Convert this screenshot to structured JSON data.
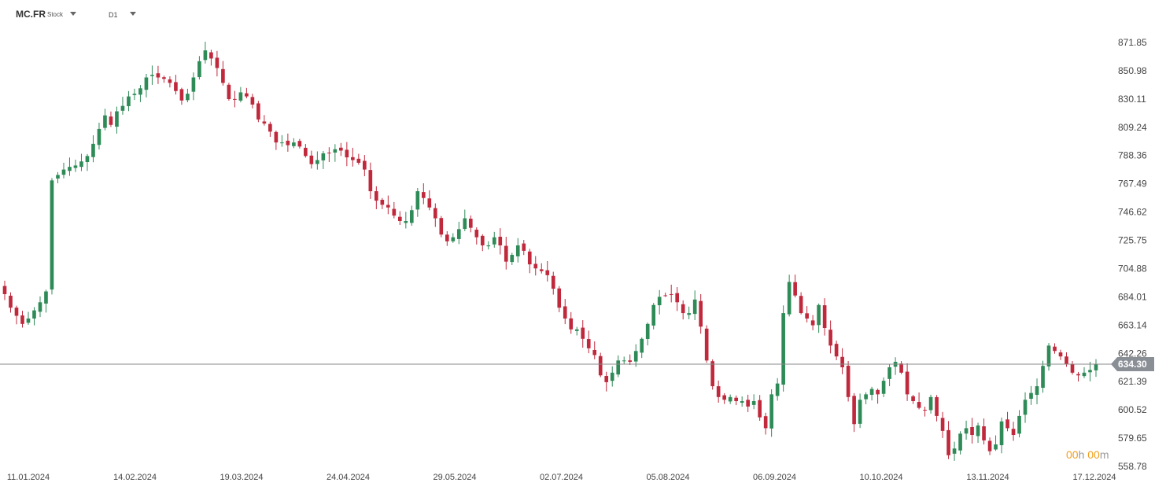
{
  "header": {
    "symbol": "MC.FR",
    "instrument_type": "Stock",
    "timeframe": "D1"
  },
  "countdown": {
    "hours": "00",
    "hours_unit": "h",
    "minutes": "00",
    "minutes_unit": "m"
  },
  "colors": {
    "up": "#2e8b57",
    "down": "#c0283c",
    "price_line": "#888888",
    "label_bg": "#8a8f96"
  },
  "chart_data": {
    "type": "candlestick",
    "title": "",
    "timeframe": "D1",
    "y_ticks": [
      871.85,
      850.98,
      830.11,
      809.24,
      788.36,
      767.49,
      746.62,
      725.75,
      704.88,
      684.01,
      663.14,
      642.26,
      621.39,
      600.52,
      579.65,
      558.78
    ],
    "ylim": [
      556,
      884
    ],
    "x_tick_labels": [
      "11.01.2024",
      "14.02.2024",
      "19.03.2024",
      "24.04.2024",
      "29.05.2024",
      "02.07.2024",
      "05.08.2024",
      "06.09.2024",
      "10.10.2024",
      "13.11.2024",
      "17.12.2024"
    ],
    "current_price": "634.30",
    "grid": false,
    "approx_close_series": [
      686,
      676,
      670,
      664,
      668,
      674,
      680,
      688,
      770,
      774,
      778,
      780,
      781,
      784,
      788,
      797,
      808,
      818,
      811,
      821,
      825,
      832,
      834,
      838,
      846,
      848,
      846,
      845,
      842,
      836,
      829,
      834,
      846,
      858,
      866,
      860,
      853,
      842,
      830,
      830,
      835,
      832,
      826,
      815,
      812,
      806,
      798,
      798,
      796,
      798,
      795,
      788,
      782,
      785,
      790,
      790,
      793,
      792,
      787,
      785,
      783,
      778,
      762,
      755,
      752,
      750,
      744,
      740,
      740,
      748,
      762,
      757,
      750,
      742,
      730,
      725,
      728,
      734,
      742,
      735,
      728,
      722,
      722,
      728,
      722,
      710,
      715,
      722,
      718,
      708,
      705,
      703,
      700,
      690,
      676,
      668,
      660,
      660,
      653,
      646,
      641,
      626,
      621,
      628,
      637,
      637,
      636,
      644,
      653,
      664,
      678,
      684,
      685,
      686,
      680,
      672,
      672,
      682,
      662,
      637,
      618,
      610,
      608,
      610,
      607,
      607,
      603,
      607,
      595,
      587,
      612,
      620,
      672,
      695,
      685,
      672,
      668,
      663,
      678,
      661,
      648,
      640,
      632,
      610,
      590,
      608,
      612,
      616,
      612,
      622,
      632,
      636,
      628,
      612,
      607,
      602,
      600,
      610,
      596,
      585,
      567,
      572,
      583,
      587,
      582,
      589,
      578,
      570,
      575,
      592,
      587,
      582,
      596,
      608,
      613,
      618,
      633,
      648,
      644,
      640,
      634,
      628,
      626,
      628,
      630,
      634
    ]
  }
}
